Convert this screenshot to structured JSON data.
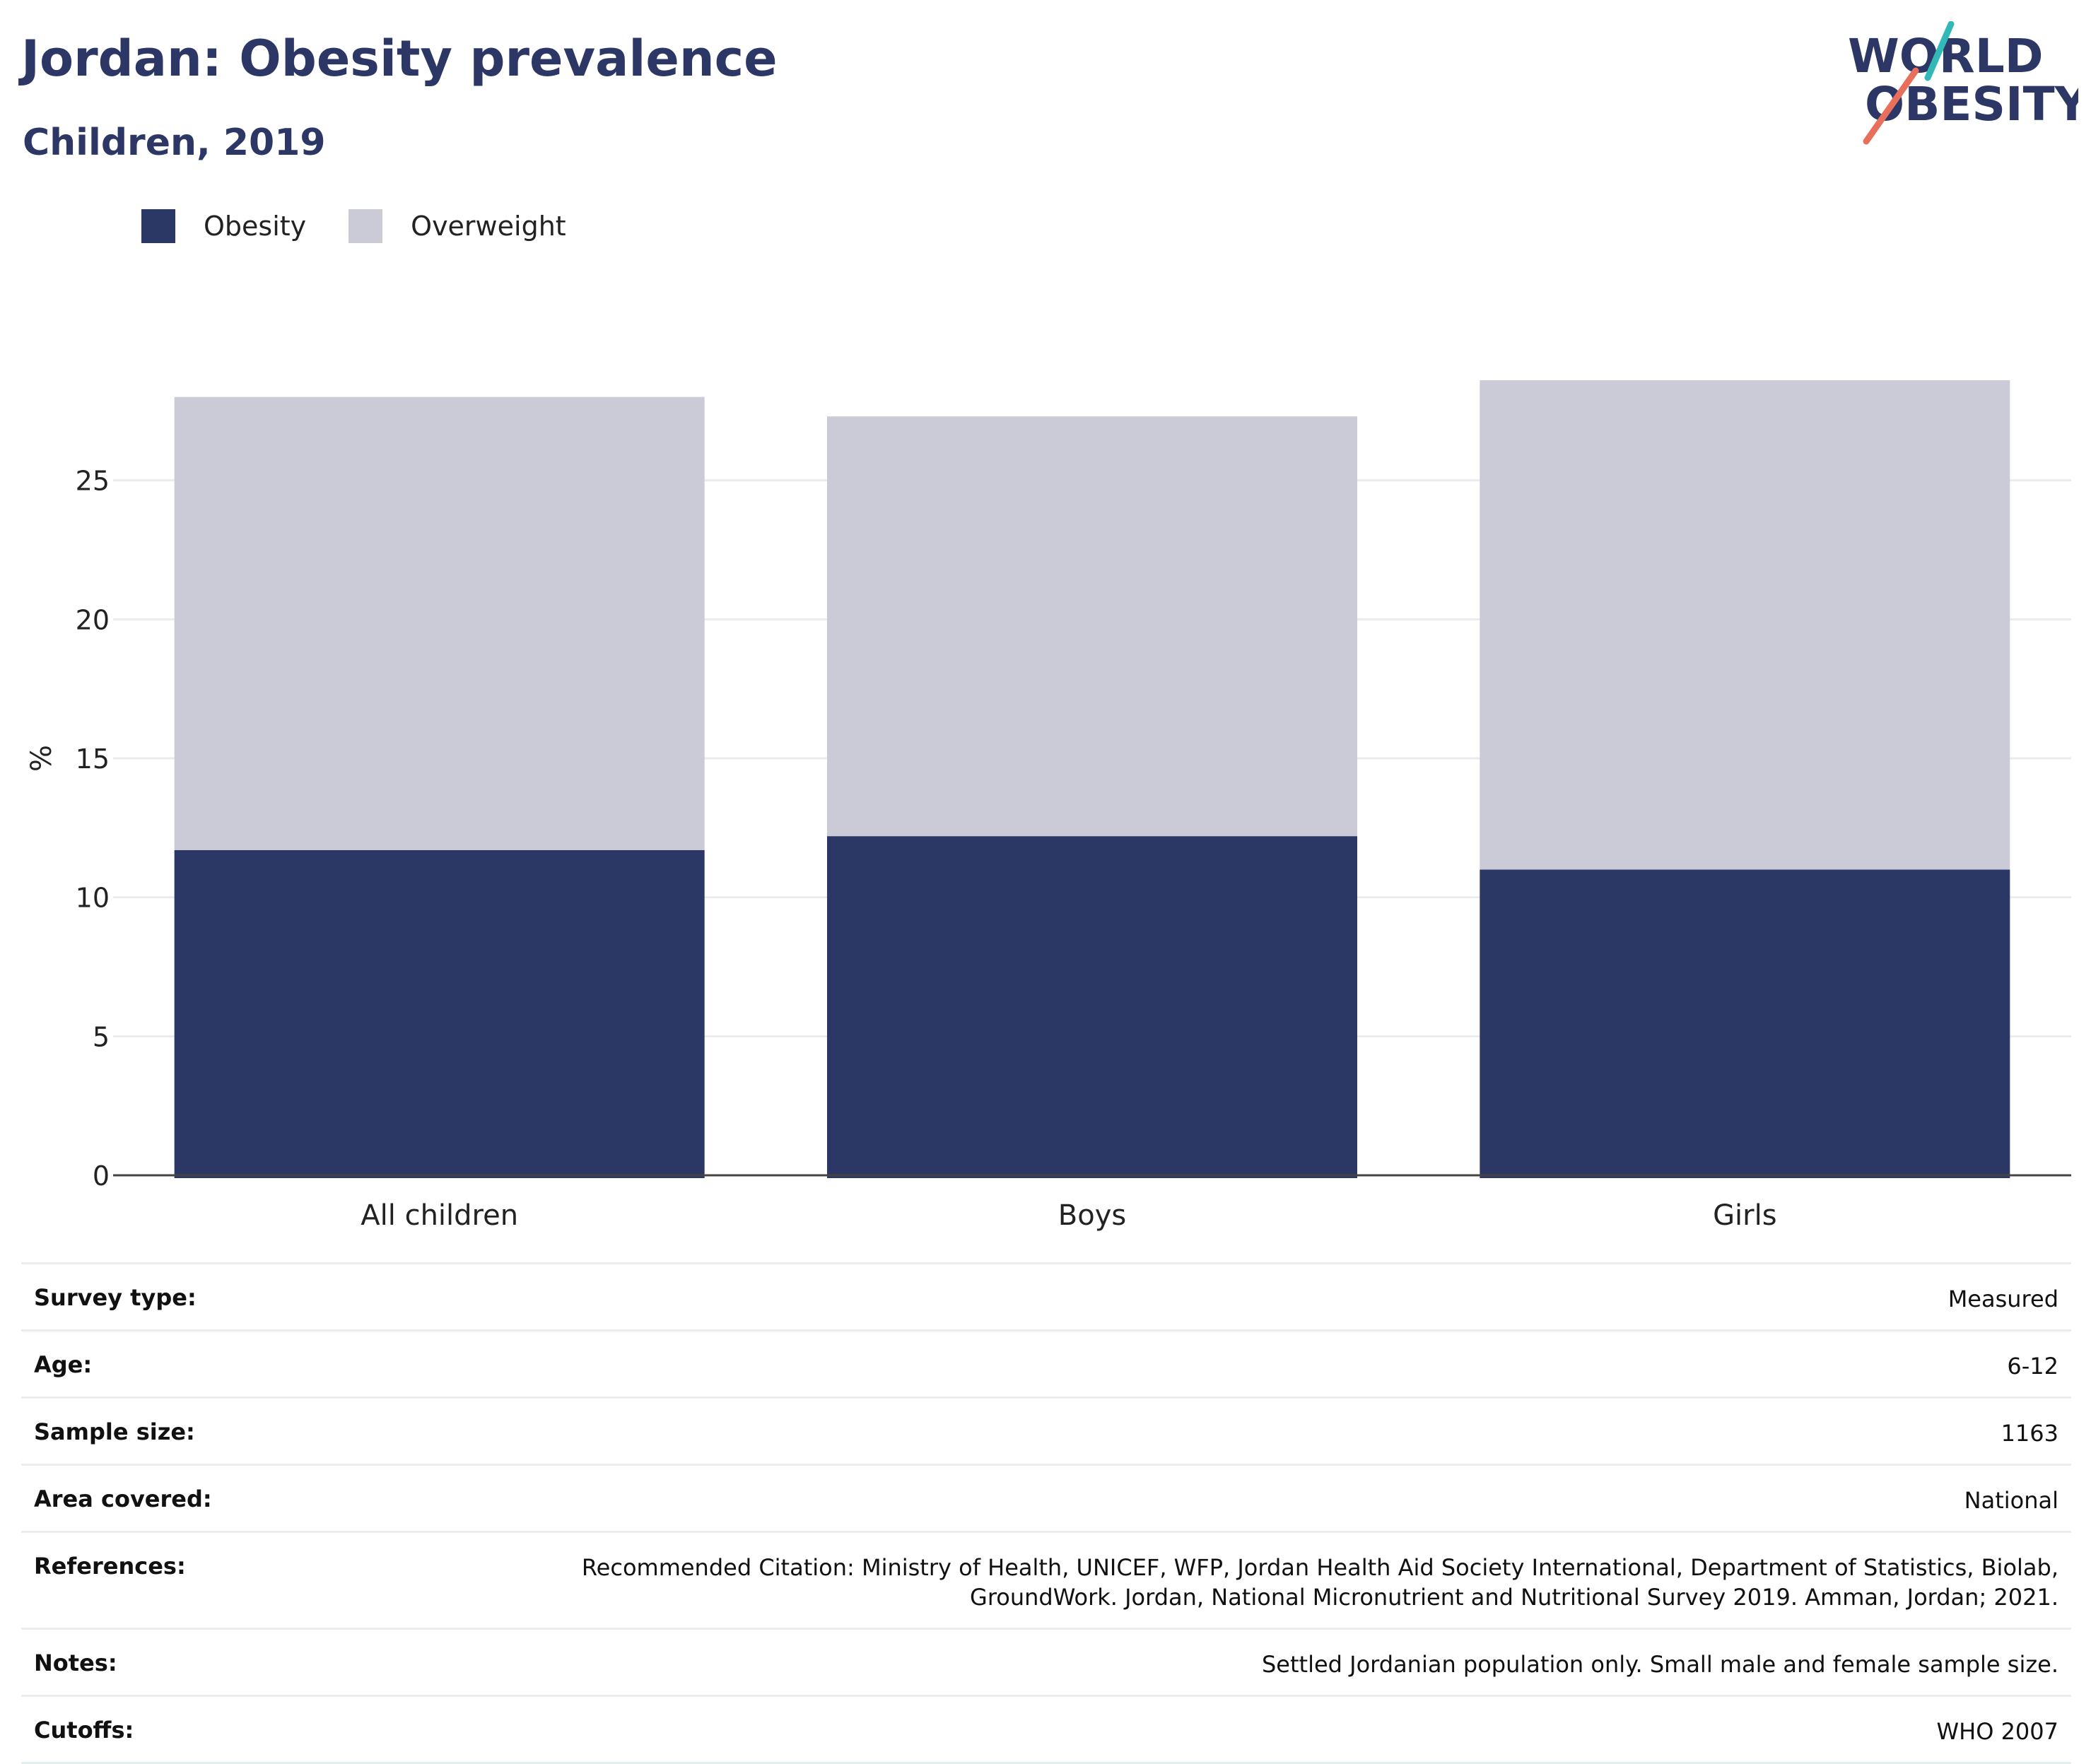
{
  "header": {
    "title": "Jordan: Obesity prevalence",
    "subtitle": "Children, 2019"
  },
  "logo": {
    "line1": "WORLD",
    "line2": "OBESITY",
    "icon": "world-obesity-logo"
  },
  "legend": [
    {
      "label": "Obesity",
      "color": "#2b3764"
    },
    {
      "label": "Overweight",
      "color": "#cacbd7"
    }
  ],
  "chart_data": {
    "type": "bar",
    "stacked": true,
    "categories": [
      "All children",
      "Boys",
      "Girls"
    ],
    "series": [
      {
        "name": "Obesity",
        "values": [
          11.7,
          12.2,
          11.0
        ],
        "color": "#2b3764"
      },
      {
        "name": "Overweight",
        "values": [
          16.3,
          15.1,
          17.6
        ],
        "color": "#cacbd7"
      }
    ],
    "ylabel": "%",
    "yticks": [
      0,
      5,
      10,
      15,
      20,
      25
    ],
    "ylim": [
      0,
      30
    ],
    "grid": true,
    "legend_position": "top-left"
  },
  "meta": [
    {
      "key": "Survey type:",
      "value": "Measured"
    },
    {
      "key": "Age:",
      "value": "6-12"
    },
    {
      "key": "Sample size:",
      "value": "1163"
    },
    {
      "key": "Area covered:",
      "value": "National"
    },
    {
      "key": "References:",
      "value": "Recommended Citation: Ministry of Health, UNICEF, WFP, Jordan Health Aid Society International, Department of Statistics, Biolab, GroundWork. Jordan, National Micronutrient and Nutritional Survey 2019. Amman, Jordan; 2021."
    },
    {
      "key": "Notes:",
      "value": "Settled Jordanian population only. Small male and female sample size."
    },
    {
      "key": "Cutoffs:",
      "value": "WHO 2007"
    }
  ]
}
